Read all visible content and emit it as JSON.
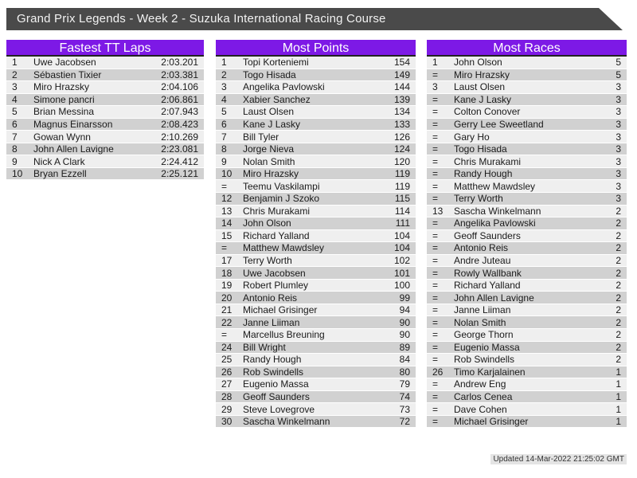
{
  "header": {
    "title": "Grand Prix Legends - Week 2 - Suzuka International Racing Course"
  },
  "tables": [
    {
      "title": "Fastest TT Laps",
      "columns": [
        "rank",
        "driver",
        "lap_time"
      ],
      "rows": [
        [
          "1",
          "Uwe Jacobsen",
          "2:03.201"
        ],
        [
          "2",
          "Sébastien Tixier",
          "2:03.381"
        ],
        [
          "3",
          "Miro Hrazsky",
          "2:04.106"
        ],
        [
          "4",
          "Simone pancri",
          "2:06.861"
        ],
        [
          "5",
          "Brian Messina",
          "2:07.943"
        ],
        [
          "6",
          "Magnus Einarsson",
          "2:08.423"
        ],
        [
          "7",
          "Gowan Wynn",
          "2:10.269"
        ],
        [
          "8",
          "John Allen Lavigne",
          "2:23.081"
        ],
        [
          "9",
          "Nick A Clark",
          "2:24.412"
        ],
        [
          "10",
          "Bryan Ezzell",
          "2:25.121"
        ]
      ]
    },
    {
      "title": "Most Points",
      "columns": [
        "rank",
        "driver",
        "points"
      ],
      "rows": [
        [
          "1",
          "Topi Korteniemi",
          "154"
        ],
        [
          "2",
          "Togo Hisada",
          "149"
        ],
        [
          "3",
          "Angelika Pavlowski",
          "144"
        ],
        [
          "4",
          "Xabier Sanchez",
          "139"
        ],
        [
          "5",
          "Laust Olsen",
          "134"
        ],
        [
          "6",
          "Kane J Lasky",
          "133"
        ],
        [
          "7",
          "Bill Tyler",
          "126"
        ],
        [
          "8",
          "Jorge Nieva",
          "124"
        ],
        [
          "9",
          "Nolan Smith",
          "120"
        ],
        [
          "10",
          "Miro Hrazsky",
          "119"
        ],
        [
          "=",
          "Teemu Vaskilampi",
          "119"
        ],
        [
          "12",
          "Benjamin J Szoko",
          "115"
        ],
        [
          "13",
          "Chris Murakami",
          "114"
        ],
        [
          "14",
          "John Olson",
          "111"
        ],
        [
          "15",
          "Richard Yalland",
          "104"
        ],
        [
          "=",
          "Matthew Mawdsley",
          "104"
        ],
        [
          "17",
          "Terry Worth",
          "102"
        ],
        [
          "18",
          "Uwe Jacobsen",
          "101"
        ],
        [
          "19",
          "Robert Plumley",
          "100"
        ],
        [
          "20",
          "Antonio Reis",
          "99"
        ],
        [
          "21",
          "Michael Grisinger",
          "94"
        ],
        [
          "22",
          "Janne Liiman",
          "90"
        ],
        [
          "=",
          "Marcellus Breuning",
          "90"
        ],
        [
          "24",
          "Bill Wright",
          "89"
        ],
        [
          "25",
          "Randy Hough",
          "84"
        ],
        [
          "26",
          "Rob Swindells",
          "80"
        ],
        [
          "27",
          "Eugenio Massa",
          "79"
        ],
        [
          "28",
          "Geoff Saunders",
          "74"
        ],
        [
          "29",
          "Steve Lovegrove",
          "73"
        ],
        [
          "30",
          "Sascha Winkelmann",
          "72"
        ]
      ]
    },
    {
      "title": "Most Races",
      "columns": [
        "rank",
        "driver",
        "races"
      ],
      "rows": [
        [
          "1",
          "John Olson",
          "5"
        ],
        [
          "=",
          "Miro Hrazsky",
          "5"
        ],
        [
          "3",
          "Laust Olsen",
          "3"
        ],
        [
          "=",
          "Kane J Lasky",
          "3"
        ],
        [
          "=",
          "Colton Conover",
          "3"
        ],
        [
          "=",
          "Gerry Lee Sweetland",
          "3"
        ],
        [
          "=",
          "Gary Ho",
          "3"
        ],
        [
          "=",
          "Togo Hisada",
          "3"
        ],
        [
          "=",
          "Chris Murakami",
          "3"
        ],
        [
          "=",
          "Randy Hough",
          "3"
        ],
        [
          "=",
          "Matthew Mawdsley",
          "3"
        ],
        [
          "=",
          "Terry Worth",
          "3"
        ],
        [
          "13",
          "Sascha Winkelmann",
          "2"
        ],
        [
          "=",
          "Angelika Pavlowski",
          "2"
        ],
        [
          "=",
          "Geoff Saunders",
          "2"
        ],
        [
          "=",
          "Antonio Reis",
          "2"
        ],
        [
          "=",
          "Andre Juteau",
          "2"
        ],
        [
          "=",
          "Rowly Wallbank",
          "2"
        ],
        [
          "=",
          "Richard Yalland",
          "2"
        ],
        [
          "=",
          "John Allen Lavigne",
          "2"
        ],
        [
          "=",
          "Janne Liiman",
          "2"
        ],
        [
          "=",
          "Nolan Smith",
          "2"
        ],
        [
          "=",
          "George Thorn",
          "2"
        ],
        [
          "=",
          "Eugenio Massa",
          "2"
        ],
        [
          "=",
          "Rob Swindells",
          "2"
        ],
        [
          "26",
          "Timo Karjalainen",
          "1"
        ],
        [
          "=",
          "Andrew Eng",
          "1"
        ],
        [
          "=",
          "Carlos Cenea",
          "1"
        ],
        [
          "=",
          "Dave Cohen",
          "1"
        ],
        [
          "=",
          "Michael Grisinger",
          "1"
        ]
      ]
    }
  ],
  "footer": {
    "updated": "Updated 14-Mar-2022 21:25:02 GMT"
  },
  "colors": {
    "accent": "#7d19e6",
    "topbar": "#4a4a4a",
    "rowLight": "#efefef",
    "rowDark": "#d1d1d1",
    "footerBg": "#e4e4e4"
  }
}
